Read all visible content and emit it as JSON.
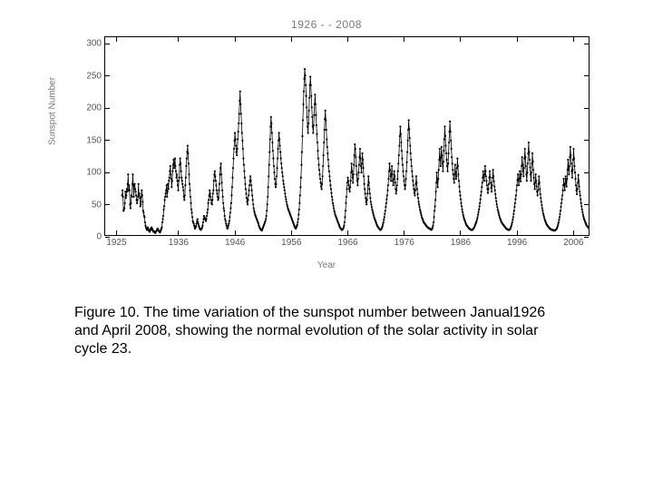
{
  "chart": {
    "type": "line",
    "title": "1926 - - 2008",
    "title_color": "#7a7a7a",
    "title_fontsize": 12,
    "xlabel": "Year",
    "ylabel": "Sunspot Number",
    "label_color": "#777777",
    "label_fontsize": 10,
    "tick_color": "#555555",
    "tick_fontsize": 10,
    "background_color": "#ffffff",
    "border_color": "#000000",
    "line_color": "#000000",
    "line_width": 0.8,
    "marker_color": "#000000",
    "marker_radius": 1.1,
    "xlim": [
      1923,
      2009
    ],
    "ylim": [
      0,
      310
    ],
    "xticks": [
      1925,
      1936,
      1946,
      1956,
      1966,
      1976,
      1986,
      1996,
      2006
    ],
    "xtick_labels": [
      "1925",
      "1936",
      "1946",
      "1956",
      "1966",
      "1976",
      "1986",
      "1996",
      "2006"
    ],
    "yticks": [
      0,
      50,
      100,
      150,
      200,
      250,
      300
    ],
    "ytick_labels": [
      "0",
      "50",
      "100",
      "150",
      "200",
      "250",
      "300"
    ],
    "x_step_months": 1,
    "x_start_year": 1926.0,
    "values": [
      62,
      70,
      60,
      38,
      40,
      42,
      50,
      68,
      58,
      62,
      72,
      68,
      80,
      95,
      70,
      78,
      70,
      48,
      42,
      50,
      62,
      60,
      80,
      95,
      78,
      60,
      78,
      80,
      72,
      68,
      62,
      55,
      50,
      55,
      60,
      80,
      62,
      65,
      58,
      45,
      48,
      60,
      70,
      62,
      52,
      38,
      35,
      30,
      28,
      20,
      15,
      12,
      10,
      8,
      10,
      12,
      9,
      7,
      6,
      5,
      8,
      10,
      8,
      12,
      10,
      9,
      7,
      5,
      6,
      5,
      4,
      3,
      5,
      6,
      7,
      9,
      10,
      8,
      7,
      6,
      5,
      4,
      6,
      8,
      10,
      12,
      20,
      25,
      30,
      40,
      45,
      55,
      60,
      65,
      70,
      78,
      60,
      68,
      80,
      72,
      85,
      90,
      100,
      108,
      95,
      88,
      75,
      85,
      100,
      110,
      118,
      105,
      112,
      120,
      108,
      100,
      90,
      95,
      85,
      78,
      70,
      85,
      90,
      110,
      120,
      112,
      100,
      90,
      85,
      80,
      75,
      70,
      60,
      55,
      62,
      78,
      90,
      108,
      120,
      130,
      140,
      128,
      112,
      95,
      80,
      70,
      60,
      50,
      40,
      35,
      28,
      22,
      20,
      18,
      15,
      12,
      10,
      12,
      14,
      18,
      22,
      25,
      20,
      17,
      14,
      12,
      10,
      9,
      8,
      9,
      10,
      12,
      15,
      20,
      25,
      30,
      28,
      26,
      24,
      22,
      25,
      30,
      35,
      40,
      50,
      55,
      62,
      70,
      65,
      60,
      55,
      50,
      48,
      55,
      65,
      70,
      85,
      95,
      100,
      92,
      85,
      78,
      70,
      65,
      60,
      55,
      58,
      70,
      80,
      95,
      105,
      112,
      95,
      82,
      70,
      60,
      50,
      42,
      38,
      30,
      25,
      22,
      18,
      15,
      12,
      10,
      12,
      15,
      18,
      22,
      28,
      35,
      42,
      50,
      62,
      75,
      90,
      105,
      120,
      135,
      148,
      160,
      150,
      140,
      130,
      125,
      135,
      150,
      162,
      175,
      190,
      210,
      225,
      205,
      190,
      175,
      160,
      148,
      135,
      120,
      110,
      100,
      90,
      80,
      72,
      65,
      58,
      52,
      48,
      55,
      62,
      70,
      78,
      85,
      92,
      85,
      78,
      70,
      62,
      55,
      48,
      42,
      38,
      35,
      32,
      30,
      28,
      26,
      24,
      22,
      20,
      18,
      15,
      13,
      11,
      10,
      9,
      8,
      7,
      8,
      10,
      12,
      14,
      16,
      18,
      20,
      22,
      25,
      30,
      38,
      48,
      60,
      75,
      92,
      110,
      130,
      150,
      170,
      185,
      175,
      160,
      145,
      132,
      120,
      108,
      98,
      88,
      80,
      75,
      80,
      92,
      105,
      120,
      135,
      148,
      160,
      150,
      140,
      130,
      120,
      112,
      105,
      98,
      92,
      85,
      80,
      75,
      70,
      65,
      60,
      56,
      52,
      48,
      45,
      42,
      40,
      38,
      36,
      34,
      32,
      30,
      28,
      26,
      24,
      22,
      20,
      18,
      16,
      14,
      12,
      11,
      10,
      12,
      14,
      16,
      20,
      25,
      32,
      40,
      50,
      62,
      75,
      90,
      110,
      130,
      155,
      180,
      205,
      225,
      245,
      260,
      250,
      235,
      218,
      200,
      185,
      170,
      160,
      175,
      195,
      215,
      235,
      248,
      235,
      218,
      200,
      185,
      170,
      160,
      172,
      188,
      205,
      220,
      205,
      188,
      172,
      158,
      145,
      132,
      120,
      110,
      102,
      95,
      88,
      82,
      76,
      72,
      80,
      92,
      108,
      125,
      145,
      165,
      182,
      195,
      180,
      165,
      150,
      138,
      128,
      118,
      108,
      100,
      92,
      85,
      78,
      72,
      66,
      60,
      55,
      50,
      46,
      42,
      38,
      35,
      32,
      30,
      28,
      26,
      24,
      22,
      20,
      18,
      16,
      14,
      12,
      11,
      10,
      9,
      8,
      8,
      9,
      10,
      12,
      15,
      20,
      28,
      38,
      50,
      60,
      72,
      82,
      90,
      85,
      78,
      72,
      68,
      75,
      85,
      98,
      112,
      100,
      90,
      82,
      95,
      110,
      125,
      142,
      135,
      122,
      108,
      95,
      85,
      78,
      88,
      98,
      110,
      122,
      135,
      120,
      108,
      98,
      112,
      128,
      118,
      105,
      92,
      80,
      72,
      65,
      58,
      52,
      48,
      55,
      65,
      78,
      92,
      82,
      72,
      65,
      58,
      52,
      48,
      44,
      40,
      37,
      34,
      31,
      28,
      26,
      24,
      22,
      20,
      18,
      16,
      14,
      13,
      12,
      11,
      10,
      9,
      8,
      8,
      9,
      10,
      12,
      14,
      17,
      20,
      24,
      28,
      33,
      38,
      44,
      50,
      56,
      62,
      70,
      78,
      88,
      100,
      112,
      102,
      92,
      85,
      95,
      108,
      95,
      85,
      78,
      88,
      100,
      92,
      82,
      72,
      65,
      70,
      78,
      88,
      100,
      112,
      125,
      140,
      155,
      170,
      158,
      145,
      132,
      120,
      110,
      100,
      92,
      85,
      78,
      72,
      78,
      88,
      100,
      114,
      130,
      148,
      165,
      180,
      166,
      152,
      140,
      128,
      118,
      108,
      100,
      92,
      85,
      78,
      72,
      66,
      62,
      70,
      80,
      92,
      82,
      72,
      64,
      58,
      52,
      48,
      44,
      40,
      37,
      34,
      31,
      28,
      26,
      24,
      22,
      20,
      19,
      18,
      17,
      16,
      15,
      14,
      13,
      12,
      12,
      11,
      11,
      10,
      10,
      9,
      9,
      8,
      9,
      10,
      12,
      15,
      20,
      28,
      38,
      45,
      55,
      68,
      82,
      98,
      85,
      75,
      88,
      102,
      118,
      135,
      120,
      108,
      122,
      138,
      125,
      112,
      100,
      115,
      132,
      150,
      170,
      155,
      140,
      128,
      118,
      108,
      100,
      112,
      128,
      145,
      162,
      178,
      162,
      148,
      135,
      122,
      112,
      102,
      95,
      88,
      82,
      95,
      110,
      98,
      88,
      92,
      105,
      120,
      108,
      95,
      85,
      76,
      68,
      62,
      56,
      50,
      45,
      40,
      36,
      32,
      29,
      26,
      24,
      22,
      20,
      18,
      16,
      15,
      14,
      13,
      12,
      11,
      10,
      10,
      9,
      9,
      8,
      8,
      8,
      8,
      9,
      10,
      11,
      12,
      14,
      16,
      18,
      20,
      22,
      25,
      28,
      32,
      36,
      40,
      45,
      50,
      56,
      62,
      68,
      75,
      82,
      90,
      100,
      92,
      85,
      95,
      108,
      100,
      92,
      85,
      78,
      72,
      66,
      72,
      80,
      90,
      100,
      90,
      82,
      74,
      68,
      78,
      90,
      102,
      92,
      84,
      76,
      70,
      64,
      58,
      53,
      48,
      44,
      40,
      37,
      34,
      31,
      28,
      26,
      24,
      22,
      20,
      19,
      18,
      17,
      16,
      15,
      14,
      13,
      12,
      11,
      10,
      10,
      9,
      9,
      8,
      8,
      8,
      8,
      9,
      10,
      12,
      14,
      17,
      20,
      24,
      28,
      33,
      38,
      44,
      50,
      56,
      62,
      70,
      78,
      86,
      95,
      86,
      78,
      88,
      100,
      92,
      84,
      95,
      108,
      122,
      110,
      100,
      92,
      105,
      120,
      135,
      122,
      108,
      95,
      85,
      98,
      112,
      128,
      145,
      130,
      118,
      106,
      95,
      85,
      98,
      112,
      128,
      115,
      102,
      90,
      80,
      72,
      82,
      95,
      85,
      76,
      68,
      62,
      70,
      80,
      92,
      82,
      72,
      64,
      58,
      52,
      47,
      42,
      38,
      34,
      31,
      28,
      25,
      23,
      21,
      19,
      17,
      16,
      15,
      14,
      13,
      12,
      11,
      10,
      10,
      9,
      9,
      8,
      8,
      8,
      8,
      7,
      7,
      7,
      7,
      8,
      8,
      9,
      10,
      12,
      14,
      17,
      20,
      24,
      28,
      33,
      38,
      44,
      50,
      56,
      62,
      70,
      78,
      88,
      78,
      70,
      80,
      92,
      84,
      76,
      88,
      102,
      118,
      105,
      95,
      108,
      122,
      138,
      125,
      112,
      100,
      90,
      102,
      118,
      135,
      120,
      108,
      98,
      88,
      78,
      70,
      64,
      72,
      82,
      94,
      85,
      76,
      68,
      62,
      56,
      50,
      45,
      40,
      36,
      32,
      29,
      26,
      24,
      22,
      20,
      18,
      16,
      15,
      14,
      13,
      12,
      11,
      10,
      9,
      9,
      8,
      7,
      7,
      6,
      6,
      6,
      5,
      5
    ]
  },
  "caption": {
    "text": "Figure 10. The time variation of the sunspot number between Janual1926 and April 2008, showing the normal evolution of the solar activity in solar cycle 23.",
    "fontsize": 16,
    "color": "#000000"
  }
}
